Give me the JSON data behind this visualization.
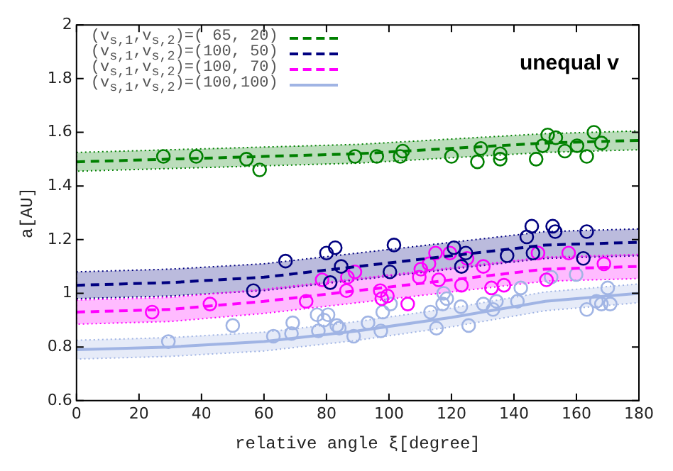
{
  "chart_data": {
    "type": "scatter",
    "xlabel": "relative angle ξ[degree]",
    "ylabel": "a[AU]",
    "annotations": [
      "unequal v"
    ],
    "xlim": [
      0,
      180
    ],
    "xticks": [
      0,
      20,
      40,
      60,
      80,
      100,
      120,
      140,
      160,
      180
    ],
    "ylim": [
      0.6,
      2
    ],
    "yticks": [
      0.6,
      0.8,
      1,
      1.2,
      1.4,
      1.6,
      1.8,
      2
    ],
    "grid": false,
    "legend": "top left",
    "series": [
      {
        "type": "line",
        "name": "(v$_{s,1}$,v$_{s,2}$)=( 65, 20)",
        "color": "#008000",
        "line_style": "dashed",
        "x": [
          0,
          30,
          60,
          90,
          120,
          150,
          180
        ],
        "values": [
          1.49,
          1.5,
          1.51,
          1.52,
          1.54,
          1.56,
          1.57
        ],
        "lower": [
          1.455,
          1.465,
          1.475,
          1.485,
          1.505,
          1.525,
          1.535
        ],
        "upper": [
          1.525,
          1.535,
          1.545,
          1.555,
          1.575,
          1.595,
          1.605
        ]
      },
      {
        "type": "line",
        "name": "(v$_{s,1}$,v$_{s,2}$)=(100, 50)",
        "color": "#000080",
        "line_style": "dashed",
        "x": [
          0,
          30,
          60,
          90,
          120,
          150,
          180
        ],
        "values": [
          1.03,
          1.04,
          1.06,
          1.1,
          1.14,
          1.18,
          1.19
        ],
        "lower": [
          0.98,
          0.99,
          1.01,
          1.05,
          1.09,
          1.13,
          1.14
        ],
        "upper": [
          1.08,
          1.09,
          1.11,
          1.15,
          1.19,
          1.23,
          1.24
        ]
      },
      {
        "type": "line",
        "name": "(v$_{s,1}$,v$_{s,2}$)=(100, 70)",
        "color": "#ff00ff",
        "line_style": "dashed",
        "x": [
          0,
          30,
          60,
          90,
          120,
          150,
          180
        ],
        "values": [
          0.93,
          0.94,
          0.97,
          1.01,
          1.05,
          1.09,
          1.1
        ],
        "lower": [
          0.885,
          0.895,
          0.925,
          0.965,
          1.005,
          1.045,
          1.055
        ],
        "upper": [
          0.975,
          0.985,
          1.015,
          1.055,
          1.095,
          1.135,
          1.145
        ]
      },
      {
        "type": "line",
        "name": "(v$_{s,1}$,v$_{s,2}$)=(100,100)",
        "color": "#a0b4e4",
        "line_style": "solid",
        "x": [
          0,
          30,
          60,
          90,
          120,
          150,
          180
        ],
        "values": [
          0.79,
          0.8,
          0.82,
          0.86,
          0.91,
          0.97,
          1.0
        ],
        "lower": [
          0.755,
          0.765,
          0.785,
          0.825,
          0.875,
          0.935,
          0.965
        ],
        "upper": [
          0.825,
          0.835,
          0.855,
          0.895,
          0.945,
          1.005,
          1.035
        ]
      },
      {
        "marker": "circle",
        "color": "#008000",
        "x": [
          27.8,
          54.4,
          89.1,
          104.4,
          129.4,
          128.3,
          135.6,
          135.6,
          150.8,
          149.2,
          160.2,
          163.3,
          165.6,
          168
        ],
        "values": [
          1.51,
          1.5,
          1.51,
          1.53,
          1.54,
          1.49,
          1.52,
          1.5,
          1.59,
          1.55,
          1.55,
          1.51,
          1.6,
          1.56
        ]
      },
      {
        "marker": "circle",
        "color": "#008000",
        "x": [
          38.3,
          58.6,
          96.1,
          103.6,
          120,
          147.1,
          153.4,
          156.3
        ],
        "values": [
          1.51,
          1.46,
          1.51,
          1.51,
          1.51,
          1.5,
          1.58,
          1.53
        ]
      },
      {
        "marker": "circle",
        "color": "#000080",
        "x": [
          66.9,
          80,
          82.8,
          84.7,
          81.2,
          56.6,
          101.6,
          100.3,
          120.8,
          124.6,
          123.2,
          137.8,
          144.1,
          145.7,
          146.1,
          152.4,
          153.2,
          163.3,
          162.2
        ],
        "values": [
          1.12,
          1.15,
          1.17,
          1.1,
          1.04,
          1.01,
          1.18,
          1.08,
          1.17,
          1.15,
          1.1,
          1.14,
          1.21,
          1.25,
          1.15,
          1.25,
          1.23,
          1.23,
          1.13
        ]
      },
      {
        "marker": "circle",
        "color": "#ff00ff",
        "x": [
          24.2,
          42.7,
          73.5,
          78.6,
          86.7,
          89.1,
          86.4,
          97.2,
          97.7,
          99.5,
          106,
          110.2,
          109.7,
          112.8,
          114.9,
          115.9,
          119.5,
          123.2,
          125,
          130.2,
          132.8,
          136.8,
          147.7,
          150.4,
          157.5,
          168.8
        ],
        "values": [
          0.93,
          0.96,
          0.97,
          1.05,
          1.06,
          1.08,
          1.01,
          1.01,
          0.98,
          0.99,
          0.96,
          1.09,
          1.06,
          1.11,
          1.15,
          1.05,
          1.15,
          1.03,
          1.13,
          1.1,
          1.02,
          1.03,
          1.15,
          1.05,
          1.15,
          1.11
        ]
      },
      {
        "marker": "circle",
        "color": "#a0b4e4",
        "x": [
          29.4,
          50,
          63,
          68.8,
          69.2,
          77.4,
          77,
          80.5,
          79.2,
          83.3,
          84.1,
          88.7,
          93.3,
          97.4,
          98,
          100.5,
          113.3,
          115.2,
          117.2,
          117.5,
          118.5,
          123,
          125.5,
          130.2,
          133.3,
          134.4,
          141.1,
          142.2,
          151.9,
          159.9,
          163.3,
          166.4,
          168,
          170,
          170.8
        ],
        "values": [
          0.82,
          0.88,
          0.84,
          0.85,
          0.89,
          0.86,
          0.92,
          0.92,
          0.9,
          0.88,
          0.87,
          0.84,
          0.89,
          0.86,
          0.93,
          0.96,
          0.93,
          0.87,
          0.96,
          1.0,
          0.98,
          0.95,
          0.88,
          0.96,
          0.94,
          0.97,
          0.97,
          1.02,
          1.06,
          1.07,
          0.94,
          0.97,
          0.96,
          1.02,
          0.96
        ]
      }
    ]
  }
}
